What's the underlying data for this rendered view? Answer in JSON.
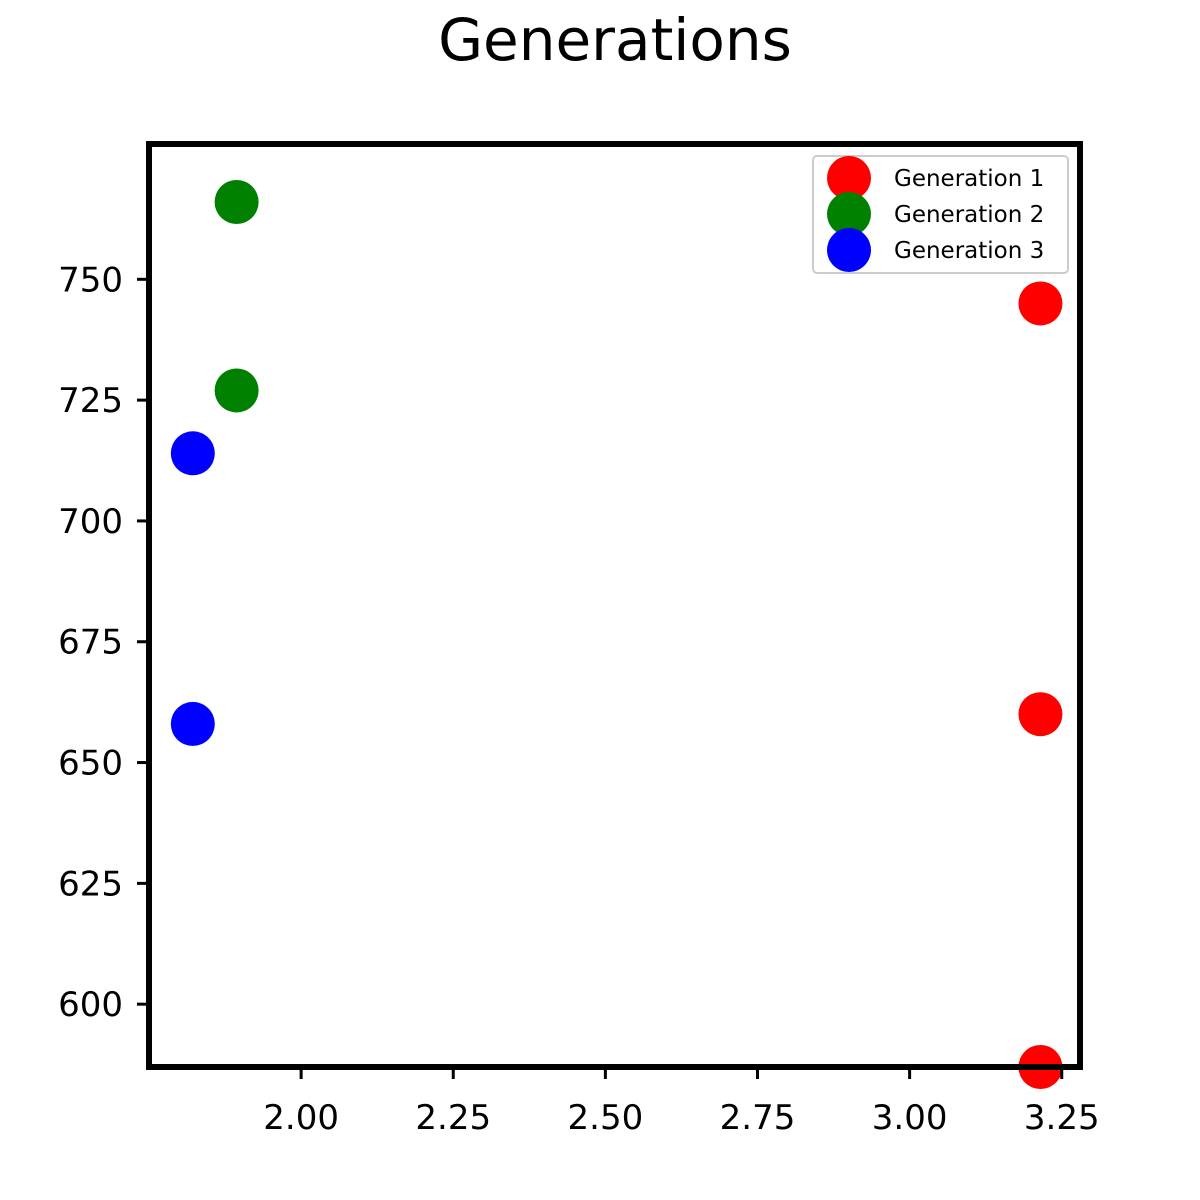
{
  "chart_data": {
    "type": "scatter",
    "title": "Generations",
    "xlabel": "",
    "ylabel": "",
    "xlim": [
      1.75,
      3.28
    ],
    "ylim": [
      587,
      778
    ],
    "x_ticks": [
      2.0,
      2.25,
      2.5,
      2.75,
      3.0,
      3.25
    ],
    "x_tick_labels": [
      "2.00",
      "2.25",
      "2.50",
      "2.75",
      "3.00",
      "3.25"
    ],
    "y_ticks": [
      600,
      625,
      650,
      675,
      700,
      725,
      750
    ],
    "y_tick_labels": [
      "600",
      "625",
      "650",
      "675",
      "700",
      "725",
      "750"
    ],
    "grid": false,
    "legend_position": "top-right",
    "series": [
      {
        "name": "Generation 1",
        "color": "#ff0000",
        "x": [
          3.215,
          3.215,
          3.215
        ],
        "y": [
          745,
          660,
          587
        ]
      },
      {
        "name": "Generation 2",
        "color": "#008000",
        "x": [
          1.894,
          1.894
        ],
        "y": [
          766,
          727
        ]
      },
      {
        "name": "Generation 3",
        "color": "#0000ff",
        "x": [
          1.822,
          1.822
        ],
        "y": [
          714,
          658
        ]
      }
    ]
  }
}
